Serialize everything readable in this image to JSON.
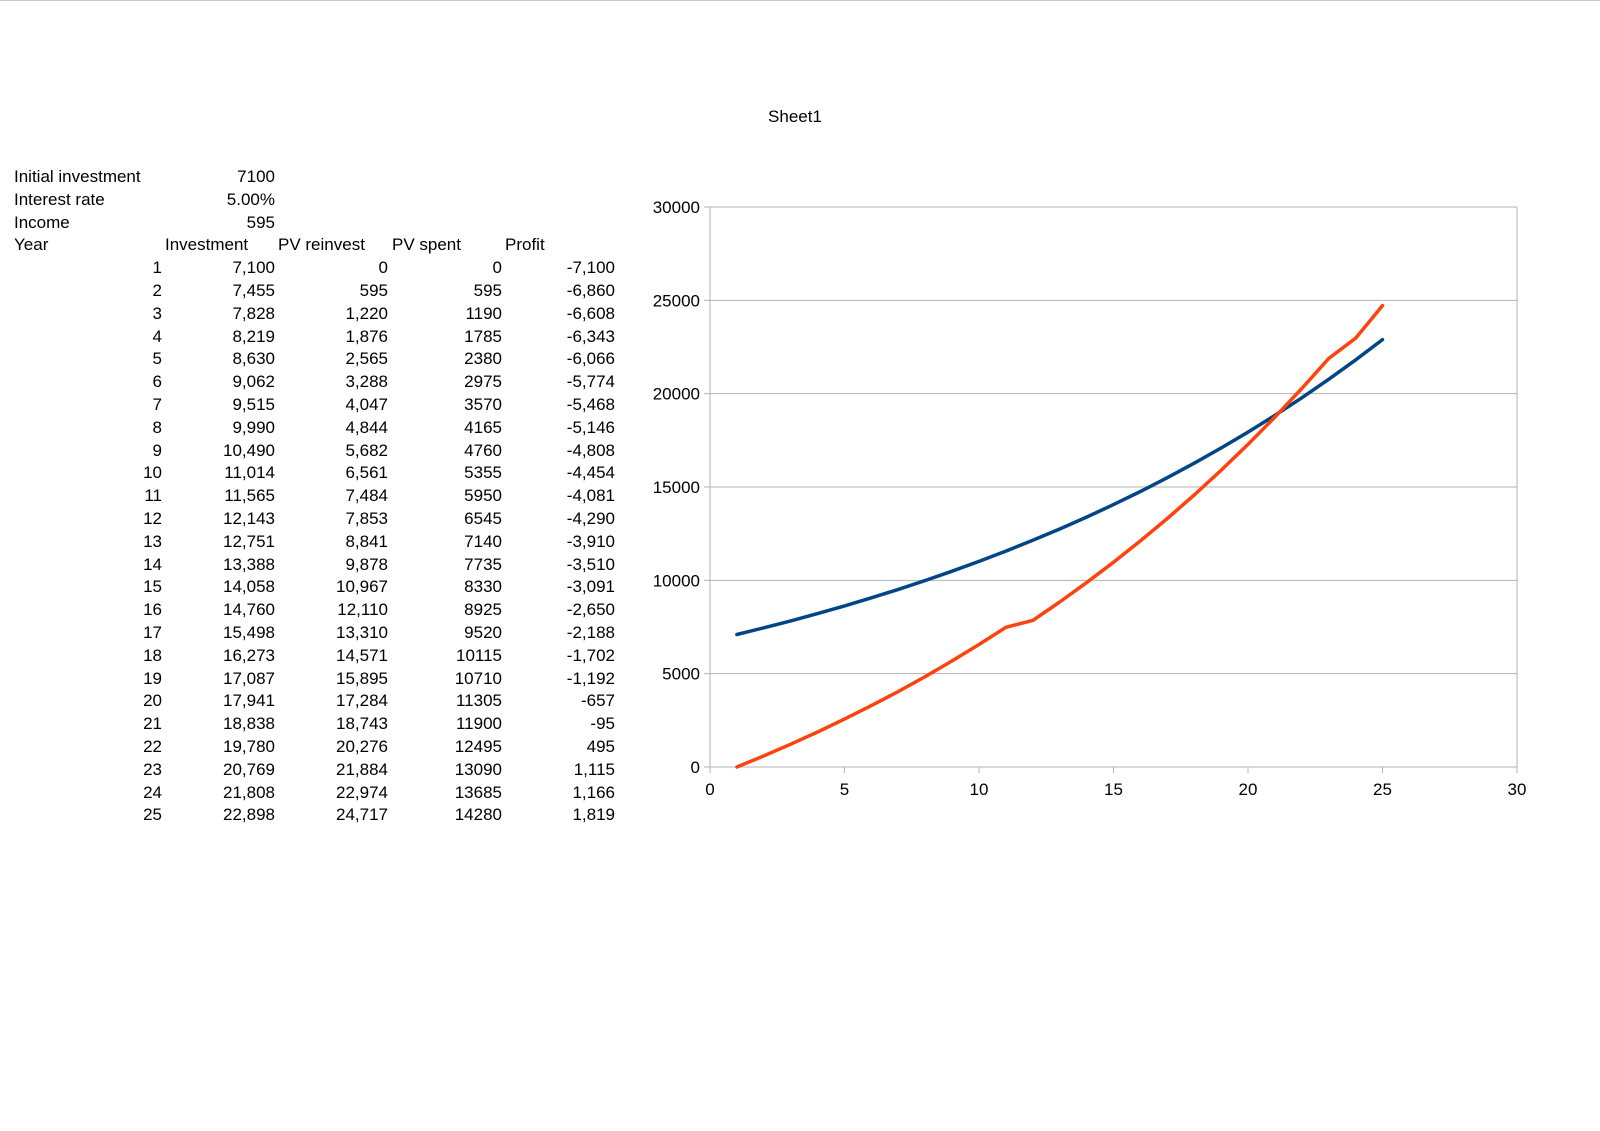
{
  "sheet_title": "Sheet1",
  "params": [
    {
      "label": "Initial investment",
      "value": "7100"
    },
    {
      "label": "Interest rate",
      "value": "5.00%"
    },
    {
      "label": "Income",
      "value": "595"
    }
  ],
  "table": {
    "headers": [
      "Year",
      "Investment",
      "PV reinvest",
      "PV spent",
      "Profit"
    ],
    "rows": [
      [
        "1",
        "7,100",
        "0",
        "0",
        "-7,100"
      ],
      [
        "2",
        "7,455",
        "595",
        "595",
        "-6,860"
      ],
      [
        "3",
        "7,828",
        "1,220",
        "1190",
        "-6,608"
      ],
      [
        "4",
        "8,219",
        "1,876",
        "1785",
        "-6,343"
      ],
      [
        "5",
        "8,630",
        "2,565",
        "2380",
        "-6,066"
      ],
      [
        "6",
        "9,062",
        "3,288",
        "2975",
        "-5,774"
      ],
      [
        "7",
        "9,515",
        "4,047",
        "3570",
        "-5,468"
      ],
      [
        "8",
        "9,990",
        "4,844",
        "4165",
        "-5,146"
      ],
      [
        "9",
        "10,490",
        "5,682",
        "4760",
        "-4,808"
      ],
      [
        "10",
        "11,014",
        "6,561",
        "5355",
        "-4,454"
      ],
      [
        "11",
        "11,565",
        "7,484",
        "5950",
        "-4,081"
      ],
      [
        "12",
        "12,143",
        "7,853",
        "6545",
        "-4,290"
      ],
      [
        "13",
        "12,751",
        "8,841",
        "7140",
        "-3,910"
      ],
      [
        "14",
        "13,388",
        "9,878",
        "7735",
        "-3,510"
      ],
      [
        "15",
        "14,058",
        "10,967",
        "8330",
        "-3,091"
      ],
      [
        "16",
        "14,760",
        "12,110",
        "8925",
        "-2,650"
      ],
      [
        "17",
        "15,498",
        "13,310",
        "9520",
        "-2,188"
      ],
      [
        "18",
        "16,273",
        "14,571",
        "10115",
        "-1,702"
      ],
      [
        "19",
        "17,087",
        "15,895",
        "10710",
        "-1,192"
      ],
      [
        "20",
        "17,941",
        "17,284",
        "11305",
        "-657"
      ],
      [
        "21",
        "18,838",
        "18,743",
        "11900",
        "-95"
      ],
      [
        "22",
        "19,780",
        "20,276",
        "12495",
        "495"
      ],
      [
        "23",
        "20,769",
        "21,884",
        "13090",
        "1,115"
      ],
      [
        "24",
        "21,808",
        "22,974",
        "13685",
        "1,166"
      ],
      [
        "25",
        "22,898",
        "24,717",
        "14280",
        "1,819"
      ]
    ]
  },
  "chart_data": {
    "type": "line",
    "title": "",
    "xlabel": "",
    "ylabel": "",
    "xlim": [
      0,
      30
    ],
    "ylim": [
      0,
      30000
    ],
    "x_ticks": [
      "0",
      "5",
      "10",
      "15",
      "20",
      "25",
      "30"
    ],
    "y_ticks": [
      "0",
      "5000",
      "10000",
      "15000",
      "20000",
      "25000",
      "30000"
    ],
    "grid": "horizontal",
    "legend": "none",
    "x": [
      1,
      2,
      3,
      4,
      5,
      6,
      7,
      8,
      9,
      10,
      11,
      12,
      13,
      14,
      15,
      16,
      17,
      18,
      19,
      20,
      21,
      22,
      23,
      24,
      25
    ],
    "series": [
      {
        "color": "#004586",
        "values": [
          7100,
          7455,
          7828,
          8219,
          8630,
          9062,
          9515,
          9990,
          10490,
          11014,
          11565,
          12143,
          12751,
          13388,
          14058,
          14760,
          15498,
          16273,
          17087,
          17941,
          18838,
          19780,
          20769,
          21808,
          22898
        ]
      },
      {
        "color": "#ff420e",
        "values": [
          0,
          595,
          1220,
          1876,
          2565,
          3288,
          4047,
          4844,
          5682,
          6561,
          7484,
          7853,
          8841,
          9878,
          10967,
          12110,
          13310,
          14571,
          15895,
          17284,
          18743,
          20276,
          21884,
          22974,
          24717
        ]
      }
    ]
  }
}
